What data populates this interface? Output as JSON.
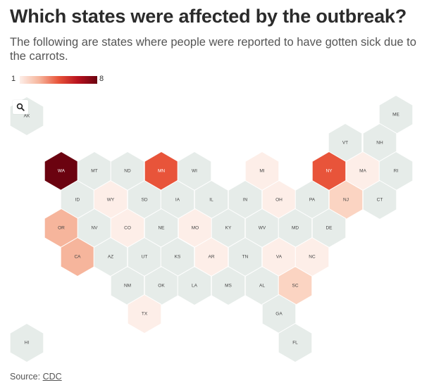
{
  "title": "Which states were affected by the outbreak?",
  "subtitle": "The following are states where people were reported to have gotten sick due to the carrots.",
  "legend": {
    "min_label": "1",
    "max_label": "8"
  },
  "colors": {
    "none": "#e6ece9",
    "scale": [
      "#fdeee8",
      "#f6b59c",
      "#e8543a",
      "#b8121e",
      "#6b0310"
    ]
  },
  "map": {
    "states": [
      {
        "abbr": "AK",
        "count": 0
      },
      {
        "abbr": "ME",
        "count": 0
      },
      {
        "abbr": "VT",
        "count": 0
      },
      {
        "abbr": "NH",
        "count": 0
      },
      {
        "abbr": "WA",
        "count": 8
      },
      {
        "abbr": "MT",
        "count": 0
      },
      {
        "abbr": "ND",
        "count": 0
      },
      {
        "abbr": "MN",
        "count": 5
      },
      {
        "abbr": "WI",
        "count": 0
      },
      {
        "abbr": "MI",
        "count": 1
      },
      {
        "abbr": "NY",
        "count": 5
      },
      {
        "abbr": "MA",
        "count": 1
      },
      {
        "abbr": "RI",
        "count": 0
      },
      {
        "abbr": "ID",
        "count": 0
      },
      {
        "abbr": "WY",
        "count": 1
      },
      {
        "abbr": "SD",
        "count": 0
      },
      {
        "abbr": "IA",
        "count": 0
      },
      {
        "abbr": "IL",
        "count": 0
      },
      {
        "abbr": "IN",
        "count": 0
      },
      {
        "abbr": "OH",
        "count": 1
      },
      {
        "abbr": "PA",
        "count": 0
      },
      {
        "abbr": "NJ",
        "count": 2
      },
      {
        "abbr": "CT",
        "count": 0
      },
      {
        "abbr": "OR",
        "count": 3
      },
      {
        "abbr": "NV",
        "count": 0
      },
      {
        "abbr": "CO",
        "count": 1
      },
      {
        "abbr": "NE",
        "count": 0
      },
      {
        "abbr": "MO",
        "count": 1
      },
      {
        "abbr": "KY",
        "count": 0
      },
      {
        "abbr": "WV",
        "count": 0
      },
      {
        "abbr": "MD",
        "count": 0
      },
      {
        "abbr": "DE",
        "count": 0
      },
      {
        "abbr": "CA",
        "count": 3
      },
      {
        "abbr": "AZ",
        "count": 0
      },
      {
        "abbr": "UT",
        "count": 0
      },
      {
        "abbr": "KS",
        "count": 0
      },
      {
        "abbr": "AR",
        "count": 1
      },
      {
        "abbr": "TN",
        "count": 0
      },
      {
        "abbr": "VA",
        "count": 1
      },
      {
        "abbr": "NC",
        "count": 1
      },
      {
        "abbr": "NM",
        "count": 0
      },
      {
        "abbr": "OK",
        "count": 0
      },
      {
        "abbr": "LA",
        "count": 0
      },
      {
        "abbr": "MS",
        "count": 0
      },
      {
        "abbr": "AL",
        "count": 0
      },
      {
        "abbr": "SC",
        "count": 2
      },
      {
        "abbr": "TX",
        "count": 1
      },
      {
        "abbr": "GA",
        "count": 0
      },
      {
        "abbr": "HI",
        "count": 0
      },
      {
        "abbr": "FL",
        "count": 0
      }
    ]
  },
  "zoom_icon": "search-icon",
  "source": {
    "prefix": "Source: ",
    "link_text": "CDC"
  }
}
